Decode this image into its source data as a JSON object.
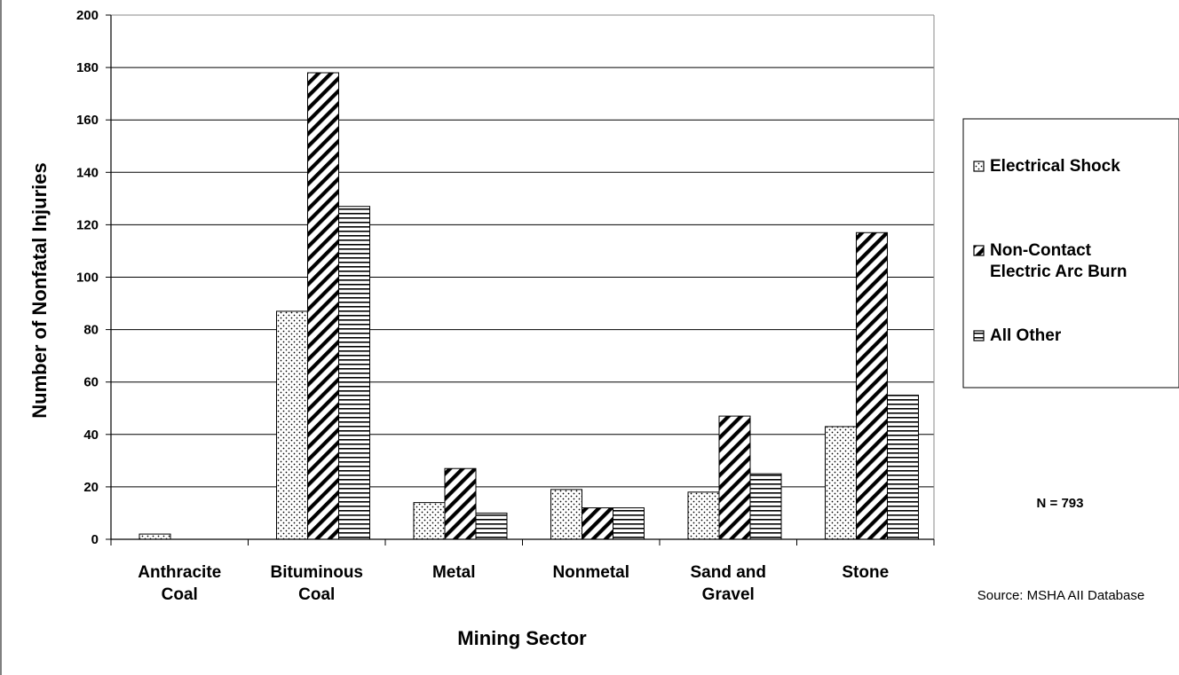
{
  "chart_data": {
    "type": "bar",
    "categories": [
      [
        "Anthracite",
        "Coal"
      ],
      [
        "Bituminous",
        "Coal"
      ],
      [
        "Metal"
      ],
      [
        "Nonmetal"
      ],
      [
        "Sand and",
        "Gravel"
      ],
      [
        "Stone"
      ]
    ],
    "series": [
      {
        "name": "Electrical Shock",
        "legend_lines": [
          "Electrical Shock"
        ],
        "pattern": "dots",
        "values": [
          2,
          87,
          14,
          19,
          18,
          43
        ]
      },
      {
        "name": "Non-Contact Electric Arc Burn",
        "legend_lines": [
          "Non-Contact",
          "Electric Arc Burn"
        ],
        "pattern": "diagonal",
        "values": [
          0,
          178,
          27,
          12,
          47,
          117
        ]
      },
      {
        "name": "All Other",
        "legend_lines": [
          "All Other"
        ],
        "pattern": "horizontal",
        "values": [
          0,
          127,
          10,
          12,
          25,
          55
        ]
      }
    ],
    "xlabel": "Mining Sector",
    "ylabel": "Number of Nonfatal Injuries",
    "ylim": [
      0,
      200
    ],
    "yticks": [
      0,
      20,
      40,
      60,
      80,
      100,
      120,
      140,
      160,
      180,
      200
    ],
    "grid": true,
    "legend_position": "right",
    "annotations": {
      "n_label": "N = 793",
      "source": "Source: MSHA AII Database"
    }
  }
}
